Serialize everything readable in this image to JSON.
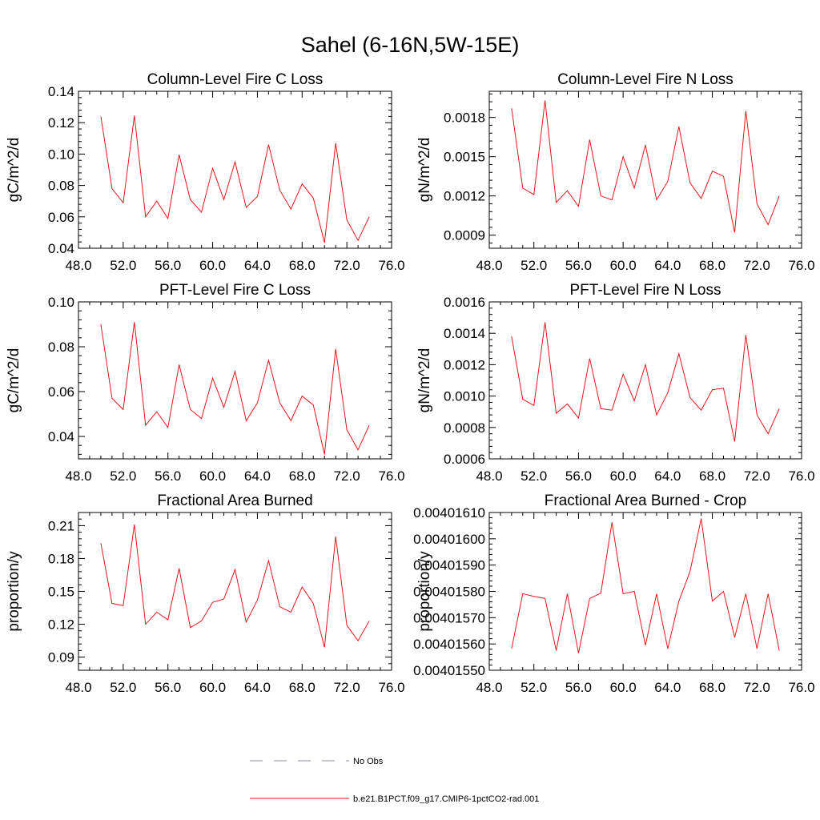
{
  "figure": {
    "title": "Sahel (6-16N,5W-15E)"
  },
  "legend": {
    "placement": "bottom-center",
    "entries": [
      {
        "label": "No Obs",
        "color": "#8a8aa8",
        "style": "dashed"
      },
      {
        "label": "b.e21.B1PCT.f09_g17.CMIP6-1pctCO2-rad.001",
        "color": "#e8141c",
        "style": "solid"
      }
    ]
  },
  "chart_data": [
    {
      "type": "line",
      "title": "Column-Level Fire C Loss",
      "xlabel": "",
      "ylabel": "gC/m^2/d",
      "xlim": [
        48,
        76
      ],
      "ylim": [
        0.04,
        0.14
      ],
      "xticks": [
        "48.0",
        "52.0",
        "56.0",
        "60.0",
        "64.0",
        "68.0",
        "72.0",
        "76.0"
      ],
      "xtick_values": [
        48,
        52,
        56,
        60,
        64,
        68,
        72,
        76
      ],
      "yticks": [
        "0.04",
        "0.06",
        "0.08",
        "0.10",
        "0.12",
        "0.14"
      ],
      "ytick_values": [
        0.04,
        0.06,
        0.08,
        0.1,
        0.12,
        0.14
      ],
      "grid": false,
      "x": [
        50,
        51,
        52,
        53,
        54,
        55,
        56,
        57,
        58,
        59,
        60,
        61,
        62,
        63,
        64,
        65,
        66,
        67,
        68,
        69,
        70,
        71,
        72,
        73,
        74
      ],
      "series": [
        {
          "color": "#e8141c",
          "values": [
            0.124,
            0.078,
            0.069,
            0.1245,
            0.06,
            0.07,
            0.059,
            0.0995,
            0.071,
            0.063,
            0.091,
            0.071,
            0.095,
            0.066,
            0.073,
            0.106,
            0.077,
            0.065,
            0.081,
            0.072,
            0.0435,
            0.107,
            0.058,
            0.045,
            0.06
          ]
        }
      ]
    },
    {
      "type": "line",
      "title": "Column-Level Fire N Loss",
      "xlabel": "",
      "ylabel": "gN/m^2/d",
      "xlim": [
        48,
        76
      ],
      "ylim": [
        0.0008,
        0.002
      ],
      "xticks": [
        "48.0",
        "52.0",
        "56.0",
        "60.0",
        "64.0",
        "68.0",
        "72.0",
        "76.0"
      ],
      "xtick_values": [
        48,
        52,
        56,
        60,
        64,
        68,
        72,
        76
      ],
      "yticks": [
        "0.0009",
        "0.0012",
        "0.0015",
        "0.0018"
      ],
      "ytick_values": [
        0.0009,
        0.0012,
        0.0015,
        0.0018
      ],
      "grid": false,
      "x": [
        50,
        51,
        52,
        53,
        54,
        55,
        56,
        57,
        58,
        59,
        60,
        61,
        62,
        63,
        64,
        65,
        66,
        67,
        68,
        69,
        70,
        71,
        72,
        73,
        74
      ],
      "series": [
        {
          "color": "#e8141c",
          "values": [
            0.00187,
            0.00126,
            0.00121,
            0.00193,
            0.00115,
            0.00124,
            0.00112,
            0.00163,
            0.0012,
            0.00117,
            0.0015,
            0.00126,
            0.00159,
            0.00117,
            0.00131,
            0.00173,
            0.0013,
            0.00118,
            0.00139,
            0.00135,
            0.00092,
            0.00185,
            0.00114,
            0.00098,
            0.0012
          ]
        }
      ]
    },
    {
      "type": "line",
      "title": "PFT-Level Fire C Loss",
      "xlabel": "",
      "ylabel": "gC/m^2/d",
      "xlim": [
        48,
        76
      ],
      "ylim": [
        0.03,
        0.1
      ],
      "xticks": [
        "48.0",
        "52.0",
        "56.0",
        "60.0",
        "64.0",
        "68.0",
        "72.0",
        "76.0"
      ],
      "xtick_values": [
        48,
        52,
        56,
        60,
        64,
        68,
        72,
        76
      ],
      "yticks": [
        "0.04",
        "0.06",
        "0.08",
        "0.10"
      ],
      "ytick_values": [
        0.04,
        0.06,
        0.08,
        0.1
      ],
      "grid": false,
      "x": [
        50,
        51,
        52,
        53,
        54,
        55,
        56,
        57,
        58,
        59,
        60,
        61,
        62,
        63,
        64,
        65,
        66,
        67,
        68,
        69,
        70,
        71,
        72,
        73,
        74
      ],
      "series": [
        {
          "color": "#e8141c",
          "values": [
            0.09,
            0.057,
            0.052,
            0.091,
            0.045,
            0.051,
            0.044,
            0.072,
            0.052,
            0.048,
            0.066,
            0.053,
            0.069,
            0.047,
            0.055,
            0.074,
            0.055,
            0.047,
            0.058,
            0.054,
            0.032,
            0.079,
            0.043,
            0.034,
            0.045
          ]
        }
      ]
    },
    {
      "type": "line",
      "title": "PFT-Level Fire N Loss",
      "xlabel": "",
      "ylabel": "gN/m^2/d",
      "xlim": [
        48,
        76
      ],
      "ylim": [
        0.0006,
        0.0016
      ],
      "xticks": [
        "48.0",
        "52.0",
        "56.0",
        "60.0",
        "64.0",
        "68.0",
        "72.0",
        "76.0"
      ],
      "xtick_values": [
        48,
        52,
        56,
        60,
        64,
        68,
        72,
        76
      ],
      "yticks": [
        "0.0006",
        "0.0008",
        "0.0010",
        "0.0012",
        "0.0014",
        "0.0016"
      ],
      "ytick_values": [
        0.0006,
        0.0008,
        0.001,
        0.0012,
        0.0014,
        0.0016
      ],
      "grid": false,
      "x": [
        50,
        51,
        52,
        53,
        54,
        55,
        56,
        57,
        58,
        59,
        60,
        61,
        62,
        63,
        64,
        65,
        66,
        67,
        68,
        69,
        70,
        71,
        72,
        73,
        74
      ],
      "series": [
        {
          "color": "#e8141c",
          "values": [
            0.00138,
            0.00098,
            0.00094,
            0.00147,
            0.00089,
            0.00095,
            0.00086,
            0.00124,
            0.00092,
            0.00091,
            0.00114,
            0.00097,
            0.0012,
            0.00088,
            0.00102,
            0.00127,
            0.00099,
            0.00091,
            0.00104,
            0.00105,
            0.00071,
            0.00139,
            0.00088,
            0.00076,
            0.00092
          ]
        }
      ]
    },
    {
      "type": "line",
      "title": "Fractional Area Burned",
      "xlabel": "",
      "ylabel": "proportion/y",
      "xlim": [
        48,
        76
      ],
      "ylim": [
        0.078,
        0.222
      ],
      "xticks": [
        "48.0",
        "52.0",
        "56.0",
        "60.0",
        "64.0",
        "68.0",
        "72.0",
        "76.0"
      ],
      "xtick_values": [
        48,
        52,
        56,
        60,
        64,
        68,
        72,
        76
      ],
      "yticks": [
        "0.09",
        "0.12",
        "0.15",
        "0.18",
        "0.21"
      ],
      "ytick_values": [
        0.09,
        0.12,
        0.15,
        0.18,
        0.21
      ],
      "grid": false,
      "x": [
        50,
        51,
        52,
        53,
        54,
        55,
        56,
        57,
        58,
        59,
        60,
        61,
        62,
        63,
        64,
        65,
        66,
        67,
        68,
        69,
        70,
        71,
        72,
        73,
        74
      ],
      "series": [
        {
          "color": "#e8141c",
          "values": [
            0.194,
            0.139,
            0.137,
            0.211,
            0.12,
            0.131,
            0.124,
            0.171,
            0.117,
            0.123,
            0.14,
            0.143,
            0.17,
            0.122,
            0.142,
            0.178,
            0.136,
            0.131,
            0.154,
            0.139,
            0.099,
            0.2,
            0.119,
            0.105,
            0.123
          ]
        }
      ]
    },
    {
      "type": "line",
      "title": "Fractional Area Burned - Crop",
      "xlabel": "",
      "ylabel": "proportion/y",
      "xlim": [
        48,
        76
      ],
      "ylim": [
        0.0040155,
        0.0040161
      ],
      "xticks": [
        "48.0",
        "52.0",
        "56.0",
        "60.0",
        "64.0",
        "68.0",
        "72.0",
        "76.0"
      ],
      "xtick_values": [
        48,
        52,
        56,
        60,
        64,
        68,
        72,
        76
      ],
      "yticks": [
        "0.00401550",
        "0.00401560",
        "0.00401570",
        "0.00401580",
        "0.00401590",
        "0.00401600",
        "0.00401610"
      ],
      "ytick_values": [
        0.0040155,
        0.0040156,
        0.0040157,
        0.0040158,
        0.0040159,
        0.004016,
        0.0040161
      ],
      "grid": false,
      "x": [
        50,
        51,
        52,
        53,
        54,
        55,
        56,
        57,
        58,
        59,
        60,
        61,
        62,
        63,
        64,
        65,
        66,
        67,
        68,
        69,
        70,
        71,
        72,
        73,
        74
      ],
      "series": [
        {
          "color": "#e8141c",
          "values": [
            0.004015582,
            0.004015791,
            0.004015781,
            0.004015773,
            0.004015575,
            0.004015791,
            0.004015565,
            0.004015773,
            0.004015793,
            0.004016063,
            0.004015791,
            0.0040158,
            0.004015595,
            0.004015791,
            0.004015582,
            0.004015763,
            0.004015876,
            0.004016077,
            0.004015763,
            0.0040158,
            0.004015625,
            0.004015791,
            0.004015582,
            0.004015791,
            0.004015575
          ]
        }
      ]
    }
  ]
}
